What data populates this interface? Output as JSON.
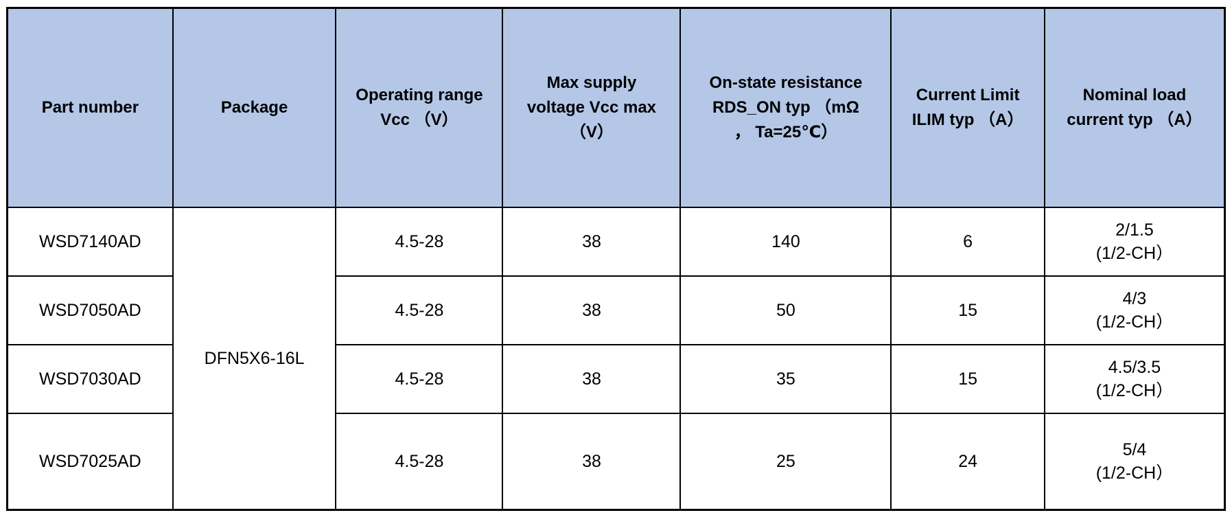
{
  "colors": {
    "header_bg": "#b4c7e7",
    "border": "#000000",
    "text": "#000000",
    "row_bg": "#ffffff"
  },
  "table": {
    "headers": [
      "Part number",
      "Package",
      "Operating range\nVcc （V）",
      "Max supply\nvoltage Vcc max\n（V）",
      "On-state resistance\nRDS_ON typ （mΩ\n， Ta=25℃）",
      "Current Limit\nILIM typ （A）",
      "Nominal load\ncurrent typ （A）"
    ],
    "package": "DFN5X6-16L",
    "rows": [
      {
        "part": "WSD7140AD",
        "vcc_range": "4.5-28",
        "vcc_max": "38",
        "rds_on": "140",
        "ilim": "6",
        "nominal": "2/1.5\n(1/2-CH）"
      },
      {
        "part": "WSD7050AD",
        "vcc_range": "4.5-28",
        "vcc_max": "38",
        "rds_on": "50",
        "ilim": "15",
        "nominal": "4/3\n(1/2-CH）"
      },
      {
        "part": "WSD7030AD",
        "vcc_range": "4.5-28",
        "vcc_max": "38",
        "rds_on": "35",
        "ilim": "15",
        "nominal": "4.5/3.5\n(1/2-CH）"
      },
      {
        "part": "WSD7025AD",
        "vcc_range": "4.5-28",
        "vcc_max": "38",
        "rds_on": "25",
        "ilim": "24",
        "nominal": "5/4\n(1/2-CH）"
      }
    ]
  }
}
